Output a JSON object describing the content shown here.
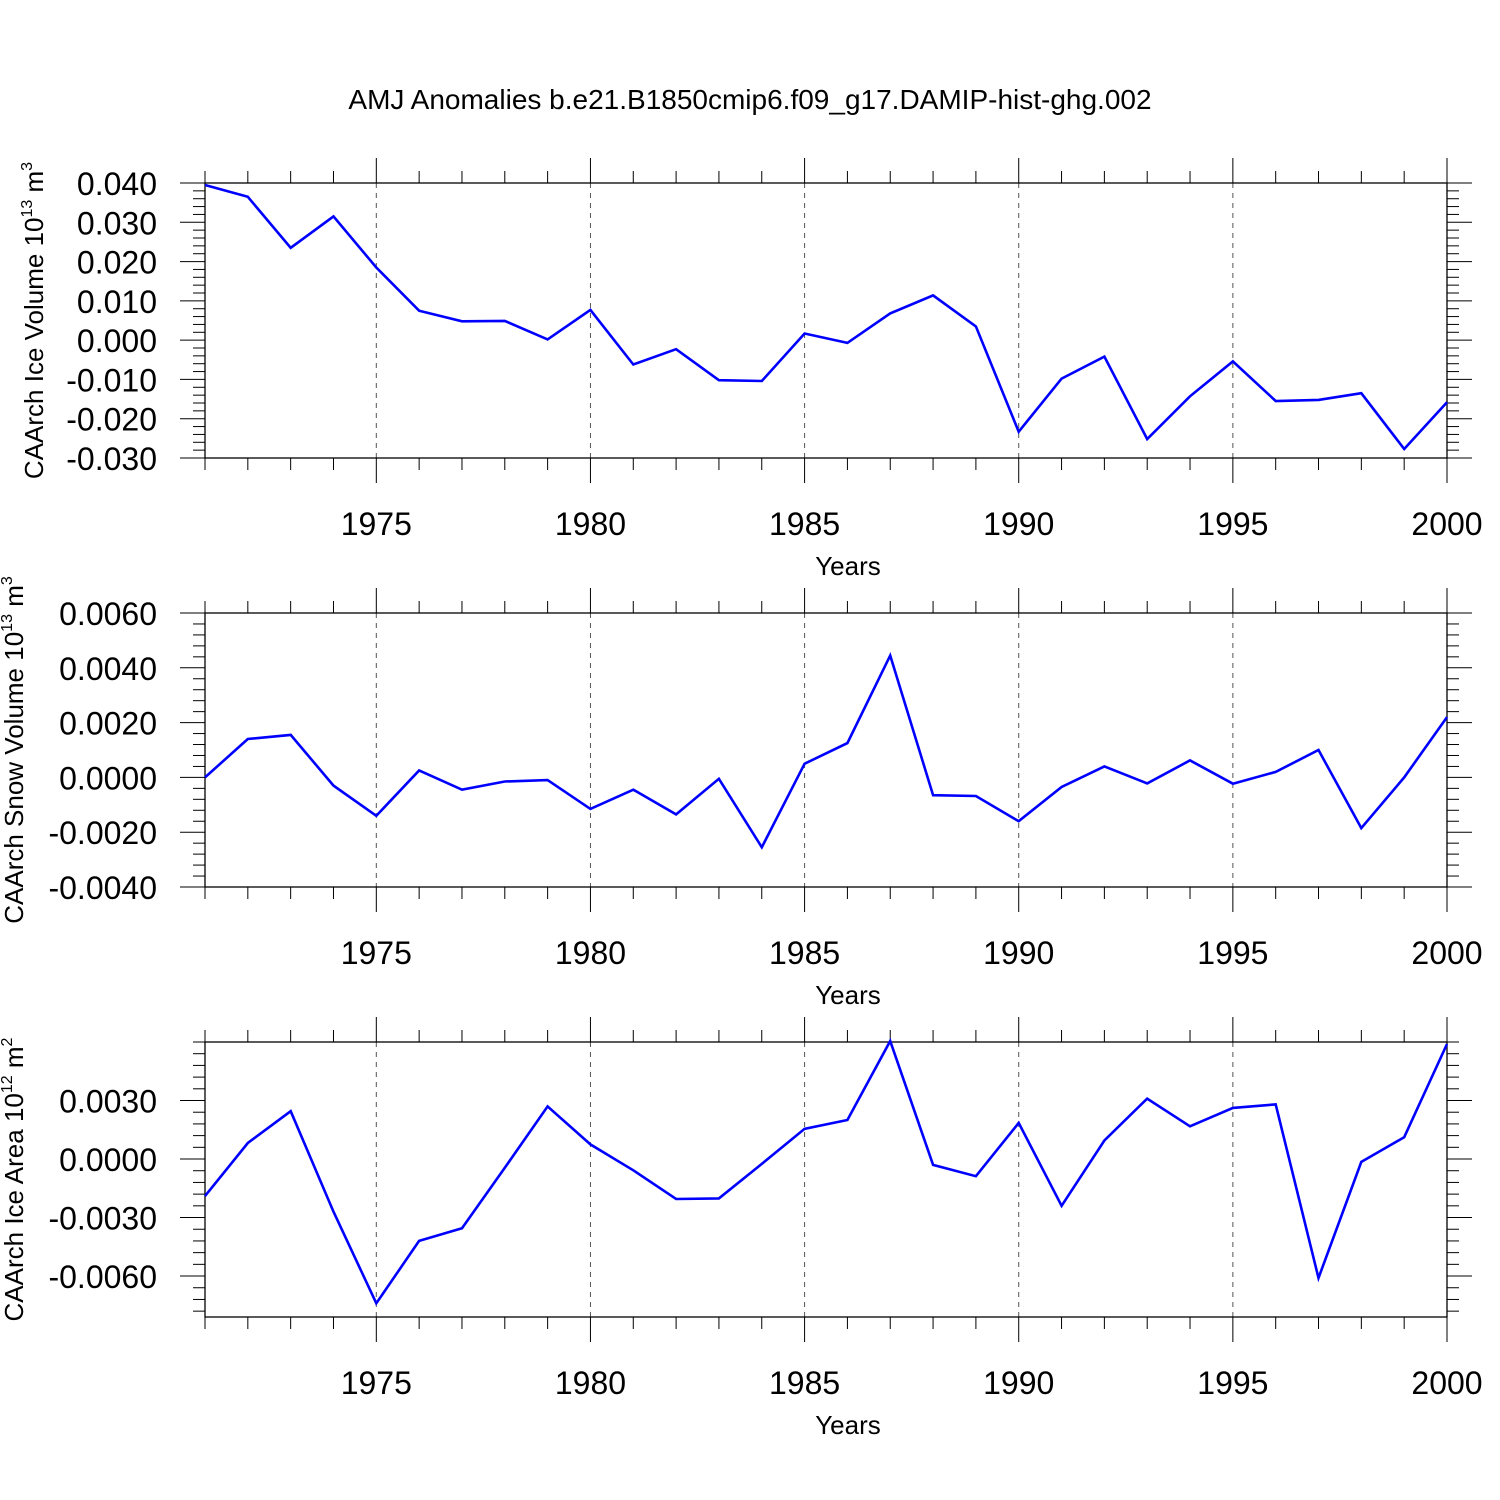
{
  "title": "AMJ Anomalies b.e21.B1850cmip6.f09_g17.DAMIP-hist-ghg.002",
  "line_color": "#0000ff",
  "chart_data": [
    {
      "type": "line",
      "title": "",
      "xlabel": "Years",
      "ylabel": "CAArch Ice Volume 10",
      "ylabel_sup": "13",
      "ylabel_unit": " m",
      "ylabel_unit_sup": "3",
      "xlim": [
        1971,
        2000
      ],
      "ylim": [
        -0.03,
        0.04
      ],
      "grid": "vertical dashed at major x ticks",
      "x_ticks": [
        1975,
        1980,
        1985,
        1990,
        1995,
        2000
      ],
      "x_tick_labels": [
        "1975",
        "1980",
        "1985",
        "1990",
        "1995",
        "2000"
      ],
      "y_ticks": [
        0.04,
        0.03,
        0.02,
        0.01,
        0.0,
        -0.01,
        -0.02,
        -0.03
      ],
      "y_tick_labels": [
        "0.040",
        "0.030",
        "0.020",
        "0.010",
        "0.000",
        "-0.010",
        "-0.020",
        "-0.030"
      ],
      "x": [
        1971,
        1972,
        1973,
        1974,
        1975,
        1976,
        1977,
        1978,
        1979,
        1980,
        1981,
        1982,
        1983,
        1984,
        1985,
        1986,
        1987,
        1988,
        1989,
        1990,
        1991,
        1992,
        1993,
        1994,
        1995,
        1996,
        1997,
        1998,
        1999,
        2000
      ],
      "values": [
        0.0395,
        0.0365,
        0.0235,
        0.0315,
        0.0185,
        0.0075,
        0.0048,
        0.0049,
        0.0002,
        0.0077,
        -0.0062,
        -0.0023,
        -0.0102,
        -0.0104,
        0.0017,
        -0.0007,
        0.0068,
        0.0114,
        0.0035,
        -0.0233,
        -0.0098,
        -0.0042,
        -0.0252,
        -0.0143,
        -0.0054,
        -0.0155,
        -0.0152,
        -0.0135,
        -0.0277,
        -0.0158
      ]
    },
    {
      "type": "line",
      "title": "",
      "xlabel": "Years",
      "ylabel": "CAArch Snow Volume 10",
      "ylabel_sup": "13",
      "ylabel_unit": " m",
      "ylabel_unit_sup": "3",
      "xlim": [
        1971,
        2000
      ],
      "ylim": [
        -0.004,
        0.006
      ],
      "grid": "vertical dashed at major x ticks",
      "x_ticks": [
        1975,
        1980,
        1985,
        1990,
        1995,
        2000
      ],
      "x_tick_labels": [
        "1975",
        "1980",
        "1985",
        "1990",
        "1995",
        "2000"
      ],
      "y_ticks": [
        0.006,
        0.004,
        0.002,
        0.0,
        -0.002,
        -0.004
      ],
      "y_tick_labels": [
        "0.0060",
        "0.0040",
        "0.0020",
        "0.0000",
        "-0.0020",
        "-0.0040"
      ],
      "x": [
        1971,
        1972,
        1973,
        1974,
        1975,
        1976,
        1977,
        1978,
        1979,
        1980,
        1981,
        1982,
        1983,
        1984,
        1985,
        1986,
        1987,
        1988,
        1989,
        1990,
        1991,
        1992,
        1993,
        1994,
        1995,
        1996,
        1997,
        1998,
        1999,
        2000
      ],
      "values": [
        0.0,
        0.0014,
        0.00155,
        -0.0003,
        -0.0014,
        0.00025,
        -0.00045,
        -0.00015,
        -0.0001,
        -0.00115,
        -0.00045,
        -0.00135,
        -5e-05,
        -0.00255,
        0.0005,
        0.00125,
        0.00445,
        -0.00065,
        -0.00068,
        -0.0016,
        -0.00035,
        0.0004,
        -0.00022,
        0.00062,
        -0.00023,
        0.0002,
        0.001,
        -0.00185,
        0.0,
        0.0022
      ]
    },
    {
      "type": "line",
      "title": "",
      "xlabel": "Years",
      "ylabel": "CAArch Ice Area 10",
      "ylabel_sup": "12",
      "ylabel_unit": " m",
      "ylabel_unit_sup": "2",
      "xlim": [
        1971,
        2000
      ],
      "ylim": [
        -0.0081,
        0.006
      ],
      "grid": "vertical dashed at major x ticks",
      "x_ticks": [
        1975,
        1980,
        1985,
        1990,
        1995,
        2000
      ],
      "x_tick_labels": [
        "1975",
        "1980",
        "1985",
        "1990",
        "1995",
        "2000"
      ],
      "y_ticks": [
        0.003,
        0.0,
        -0.003,
        -0.006
      ],
      "y_tick_labels": [
        "0.0030",
        "0.0000",
        "-0.0030",
        "-0.0060"
      ],
      "x": [
        1971,
        1972,
        1973,
        1974,
        1975,
        1976,
        1977,
        1978,
        1979,
        1980,
        1981,
        1982,
        1983,
        1984,
        1985,
        1986,
        1987,
        1988,
        1989,
        1990,
        1991,
        1992,
        1993,
        1994,
        1995,
        1996,
        1997,
        1998,
        1999,
        2000
      ],
      "values": [
        -0.0019,
        0.00082,
        0.00245,
        -0.0027,
        -0.0074,
        -0.0042,
        -0.00355,
        -0.00045,
        0.0027,
        0.00075,
        -0.00058,
        -0.00205,
        -0.00202,
        -0.00025,
        0.00155,
        0.002,
        0.00605,
        -0.0003,
        -0.00088,
        0.00185,
        -0.0024,
        0.00095,
        0.0031,
        0.00168,
        0.00262,
        0.0028,
        -0.0061,
        -0.00015,
        0.00112,
        0.0059
      ]
    }
  ]
}
